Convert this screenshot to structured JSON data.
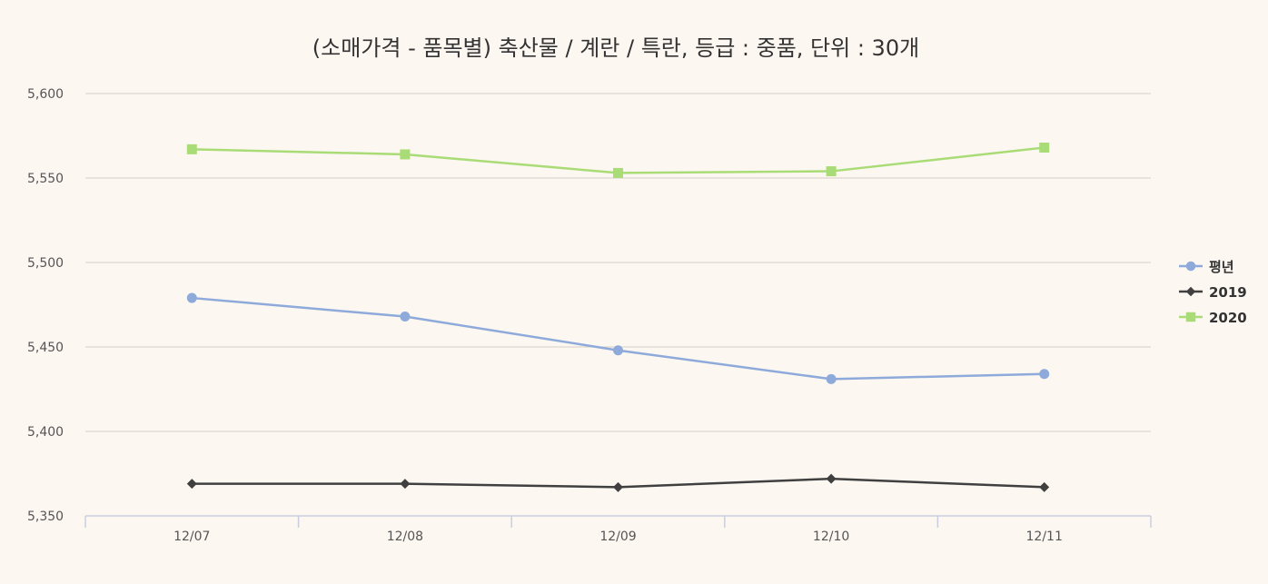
{
  "chart_data": {
    "type": "line",
    "title": "(소매가격 - 품목별) 축산물 / 계란 / 특란, 등급 : 중품, 단위 : 30개",
    "categories": [
      "12/07",
      "12/08",
      "12/09",
      "12/10",
      "12/11"
    ],
    "y_ticks": [
      "5,350",
      "5,400",
      "5,450",
      "5,500",
      "5,550",
      "5,600"
    ],
    "y_tick_values": [
      5350,
      5400,
      5450,
      5500,
      5550,
      5600
    ],
    "ylim": [
      5350,
      5600
    ],
    "grid": true,
    "legend_position": "right",
    "series": [
      {
        "name": "평년",
        "color": "#8eaadb",
        "marker": "circle",
        "values": [
          5479,
          5468,
          5448,
          5431,
          5434
        ]
      },
      {
        "name": "2019",
        "color": "#404040",
        "marker": "diamond",
        "values": [
          5369,
          5369,
          5367,
          5372,
          5367
        ]
      },
      {
        "name": "2020",
        "color": "#a9dc76",
        "marker": "square",
        "values": [
          5567,
          5564,
          5553,
          5554,
          5568
        ]
      }
    ]
  }
}
